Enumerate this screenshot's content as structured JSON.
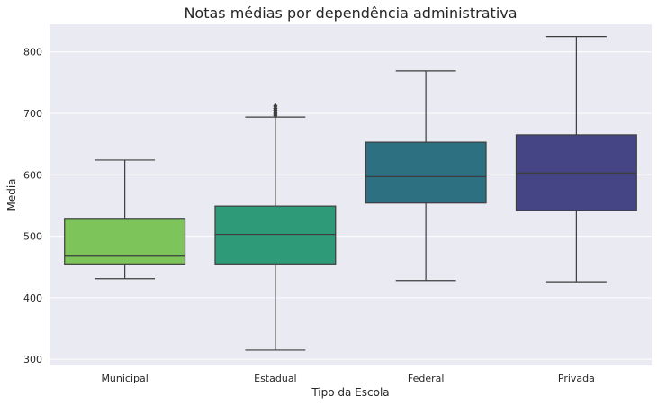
{
  "chart_data": {
    "type": "box",
    "title": "Notas médias por dependência administrativa",
    "xlabel": "Tipo da Escola",
    "ylabel": "Media",
    "ylim": [
      290,
      845
    ],
    "yticks": [
      300,
      400,
      500,
      600,
      700,
      800
    ],
    "grid": true,
    "background_color": "#eaeaf2",
    "categories": [
      "Municipal",
      "Estadual",
      "Federal",
      "Privada"
    ],
    "boxes": [
      {
        "category": "Municipal",
        "whisker_low": 431,
        "q1": 455,
        "median": 469,
        "q3": 529,
        "whisker_high": 624,
        "color": "#7dc55a",
        "outliers": []
      },
      {
        "category": "Estadual",
        "whisker_low": 315,
        "q1": 455,
        "median": 503,
        "q3": 549,
        "whisker_high": 694,
        "color": "#2e9a78",
        "outliers": [
          697,
          700,
          702,
          705,
          708,
          712
        ]
      },
      {
        "category": "Federal",
        "whisker_low": 428,
        "q1": 554,
        "median": 597,
        "q3": 653,
        "whisker_high": 769,
        "color": "#2c7081",
        "outliers": []
      },
      {
        "category": "Privada",
        "whisker_low": 426,
        "q1": 542,
        "median": 603,
        "q3": 665,
        "whisker_high": 825,
        "color": "#454585",
        "outliers": []
      }
    ]
  }
}
